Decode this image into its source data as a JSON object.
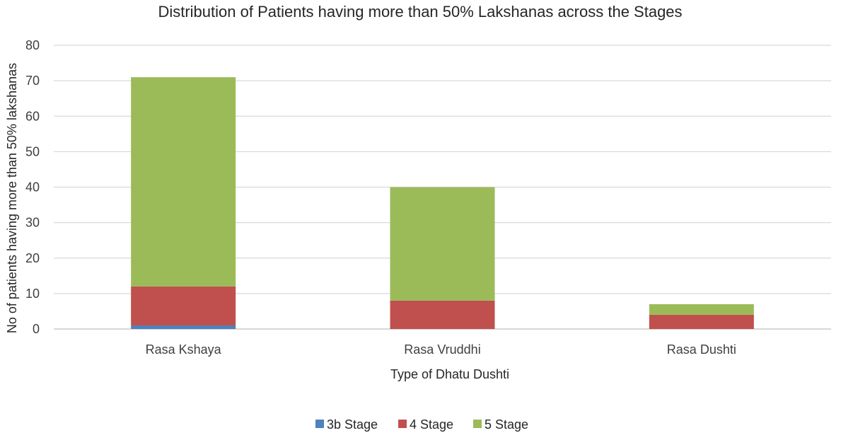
{
  "chart_data": {
    "type": "bar",
    "stacked": true,
    "title": "Distribution of Patients having more than 50% Lakshanas across the Stages",
    "xlabel": "Type of Dhatu Dushti",
    "ylabel": "No of patients having more than 50% lakshanas",
    "categories": [
      "Rasa Kshaya",
      "Rasa Vruddhi",
      "Rasa Dushti"
    ],
    "series": [
      {
        "name": "3b Stage",
        "color": "#4f81bd",
        "values": [
          1,
          0,
          0
        ]
      },
      {
        "name": "4 Stage",
        "color": "#c0504d",
        "values": [
          11,
          8,
          4
        ]
      },
      {
        "name": "5 Stage",
        "color": "#9bbb59",
        "values": [
          59,
          32,
          3
        ]
      }
    ],
    "ylim": [
      0,
      80
    ],
    "yticks": [
      0,
      10,
      20,
      30,
      40,
      50,
      60,
      70,
      80
    ],
    "grid": true,
    "legend_position": "bottom"
  }
}
